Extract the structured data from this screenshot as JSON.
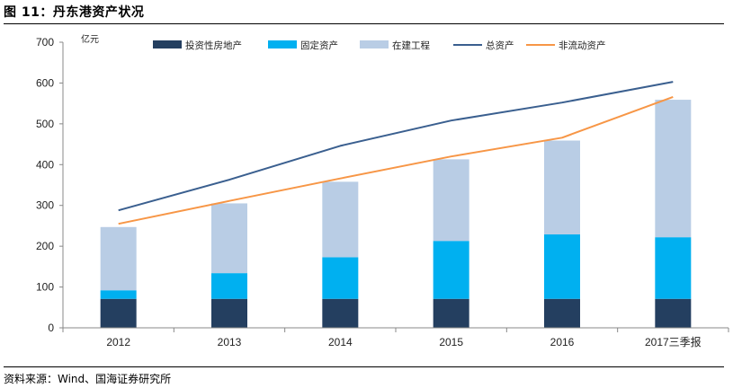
{
  "figure": {
    "title": "图 11：丹东港资产状况",
    "source": "资料来源：Wind、国海证券研究所"
  },
  "chart_data": {
    "type": "bar",
    "stacked": true,
    "categories": [
      "2012",
      "2013",
      "2014",
      "2015",
      "2016",
      "2017三季报"
    ],
    "ylabel": "亿元",
    "ylim": [
      0,
      700
    ],
    "yticks": [
      0,
      100,
      200,
      300,
      400,
      500,
      600,
      700
    ],
    "grid": false,
    "legend_position": "top",
    "series": [
      {
        "name": "投资性房地产",
        "kind": "bar",
        "color": "#243F60",
        "values": [
          71,
          71,
          71,
          71,
          71,
          71
        ]
      },
      {
        "name": "固定资产",
        "kind": "bar",
        "color": "#00B0F0",
        "values": [
          21,
          63,
          102,
          142,
          158,
          151
        ]
      },
      {
        "name": "在建工程",
        "kind": "bar",
        "color": "#B9CDE5",
        "values": [
          155,
          171,
          185,
          200,
          230,
          337
        ]
      },
      {
        "name": "总资产",
        "kind": "line",
        "color": "#3A5F8F",
        "values": [
          288,
          363,
          446,
          508,
          552,
          603
        ]
      },
      {
        "name": "非流动资产",
        "kind": "line",
        "color": "#F79646",
        "values": [
          255,
          311,
          366,
          420,
          466,
          566
        ]
      }
    ]
  }
}
